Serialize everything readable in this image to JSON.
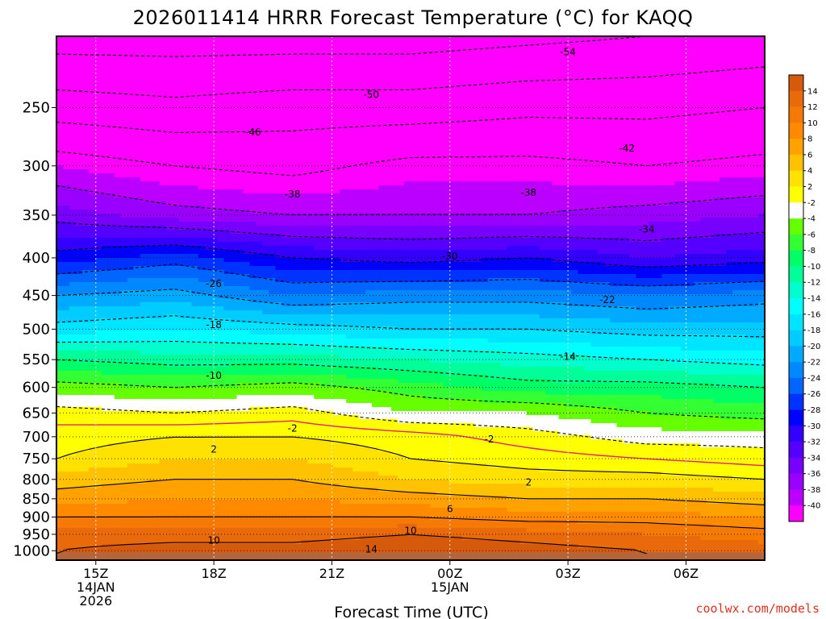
{
  "chart_data": {
    "type": "heatmap",
    "title": "2026011414 HRRR Forecast Temperature (°C) for KAQQ",
    "xlabel": "Forecast Time (UTC)",
    "ylabel": "",
    "x_ticks": [
      {
        "hour": 1,
        "lines": [
          "15Z",
          "14JAN",
          "2026"
        ]
      },
      {
        "hour": 4,
        "lines": [
          "18Z"
        ]
      },
      {
        "hour": 7,
        "lines": [
          "21Z"
        ]
      },
      {
        "hour": 10,
        "lines": [
          "00Z",
          "15JAN"
        ]
      },
      {
        "hour": 13,
        "lines": [
          "03Z"
        ]
      },
      {
        "hour": 16,
        "lines": [
          "06Z"
        ]
      }
    ],
    "x_range_hours": [
      0,
      18
    ],
    "y_ticks_hpa": [
      250,
      300,
      350,
      400,
      450,
      500,
      550,
      600,
      650,
      700,
      750,
      800,
      850,
      900,
      950,
      1000
    ],
    "y_range_hpa": [
      200,
      1030
    ],
    "colorbar_ticks": [
      "14",
      "12",
      "10",
      "8",
      "6",
      "4",
      "2",
      "-2",
      "-4",
      "-6",
      "-8",
      "-10",
      "-12",
      "-14",
      "-16",
      "-18",
      "-20",
      "-22",
      "-24",
      "-26",
      "-28",
      "-30",
      "-32",
      "-34",
      "-36",
      "-38",
      "-40"
    ],
    "colorbar_colors": [
      "#d65a0b",
      "#e86a0a",
      "#f57a05",
      "#ff8a00",
      "#ffa200",
      "#ffc200",
      "#ffe200",
      "#ffff00",
      "#ffffff",
      "#66ff00",
      "#33ff33",
      "#00ff66",
      "#00ff99",
      "#00ffcc",
      "#00ffff",
      "#00e5ff",
      "#00ccff",
      "#00aaff",
      "#0088ff",
      "#0066ff",
      "#0033ff",
      "#0000ff",
      "#3300ff",
      "#5500ff",
      "#7700ff",
      "#9900ff",
      "#bb00ff",
      "#ff00ff"
    ],
    "temperature_profiles_hpa_to_degC": {
      "pressure_levels": [
        200,
        250,
        300,
        350,
        400,
        450,
        500,
        550,
        600,
        650,
        700,
        750,
        800,
        850,
        900,
        950,
        1000
      ],
      "hours": [
        0,
        3,
        6,
        9,
        12,
        15,
        18
      ],
      "temperatures": [
        [
          -56,
          -48,
          -40,
          -35,
          -29,
          -22,
          -17,
          -10,
          -5,
          -1,
          1,
          2,
          5,
          7,
          10,
          13,
          14
        ],
        [
          -56,
          -49,
          -42,
          -37,
          -27,
          -21,
          -16,
          -11,
          -6,
          -2,
          2,
          4,
          6,
          8,
          10,
          13,
          15
        ],
        [
          -56,
          -48,
          -43,
          -38,
          -30,
          -24,
          -17,
          -11,
          -5,
          -1,
          2,
          4,
          6,
          8,
          10,
          13,
          15
        ],
        [
          -56,
          -48,
          -41,
          -38,
          -31,
          -23,
          -18,
          -12,
          -7,
          -4,
          1,
          2,
          4,
          7,
          10,
          14,
          16
        ],
        [
          -55,
          -47,
          -41,
          -38,
          -30,
          -23,
          -18,
          -13,
          -9,
          -4,
          -1,
          1,
          3,
          6,
          9,
          13,
          15
        ],
        [
          -54,
          -47,
          -42,
          -37,
          -32,
          -24,
          -19,
          -14,
          -9,
          -6,
          -3,
          0,
          3,
          6,
          9,
          12,
          14
        ],
        [
          -53,
          -46,
          -41,
          -36,
          -31,
          -23,
          -19,
          -15,
          -10,
          -7,
          -3,
          -1,
          2,
          5,
          8,
          11,
          13
        ]
      ]
    },
    "contour_labels": [
      {
        "text": "-54",
        "hour": 13.0,
        "hpa": 210
      },
      {
        "text": "-50",
        "hour": 8.0,
        "hpa": 240
      },
      {
        "text": "-46",
        "hour": 5.0,
        "hpa": 270
      },
      {
        "text": "-42",
        "hour": 14.5,
        "hpa": 284
      },
      {
        "text": "-38",
        "hour": 6.0,
        "hpa": 328
      },
      {
        "text": "-38",
        "hour": 12.0,
        "hpa": 326
      },
      {
        "text": "-34",
        "hour": 15.0,
        "hpa": 366
      },
      {
        "text": "-30",
        "hour": 10.0,
        "hpa": 398
      },
      {
        "text": "-26",
        "hour": 4.0,
        "hpa": 434
      },
      {
        "text": "-22",
        "hour": 14.0,
        "hpa": 456
      },
      {
        "text": "-18",
        "hour": 4.0,
        "hpa": 493
      },
      {
        "text": "-14",
        "hour": 13.0,
        "hpa": 545
      },
      {
        "text": "-10",
        "hour": 4.0,
        "hpa": 578
      },
      {
        "text": "-2",
        "hour": 6.0,
        "hpa": 682
      },
      {
        "text": "-2",
        "hour": 11.0,
        "hpa": 706
      },
      {
        "text": "2",
        "hour": 4.0,
        "hpa": 728
      },
      {
        "text": "2",
        "hour": 12.0,
        "hpa": 808
      },
      {
        "text": "6",
        "hour": 10.0,
        "hpa": 878
      },
      {
        "text": "10",
        "hour": 9.0,
        "hpa": 940
      },
      {
        "text": "10",
        "hour": 4.0,
        "hpa": 968
      },
      {
        "text": "14",
        "hour": 8.0,
        "hpa": 995
      }
    ],
    "grid": true
  },
  "credit": "coolwx.com/models",
  "colors": {
    "credit": "#e0301e",
    "ground": "#b5653a",
    "freezing_line": "#e0207a"
  }
}
